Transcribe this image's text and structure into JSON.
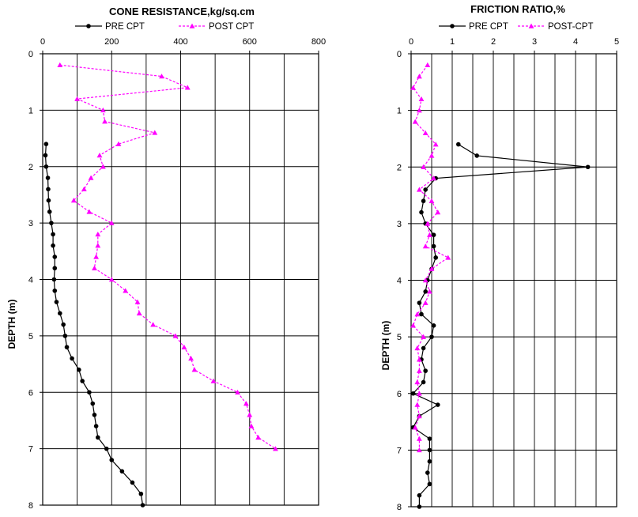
{
  "chart_data": [
    {
      "type": "line",
      "title": "CONE RESISTANCE,kg/sq.cm",
      "xlabel": "",
      "ylabel": "DEPTH (m)",
      "xlim": [
        0,
        800
      ],
      "ylim": [
        0,
        8
      ],
      "x_ticks": [
        0,
        200,
        400,
        600,
        800
      ],
      "y_ticks": [
        0,
        1,
        2,
        3,
        4,
        5,
        6,
        7,
        8
      ],
      "x_axis_position": "top",
      "y_axis_inverted": true,
      "grid": true,
      "legend_position": "top",
      "series": [
        {
          "name": "PRE CPT",
          "color": "#000000",
          "marker": "circle",
          "line": "solid",
          "points": [
            [
              10,
              1.6
            ],
            [
              8,
              1.8
            ],
            [
              10,
              2.0
            ],
            [
              15,
              2.2
            ],
            [
              16,
              2.4
            ],
            [
              17,
              2.6
            ],
            [
              20,
              2.8
            ],
            [
              25,
              3.0
            ],
            [
              30,
              3.2
            ],
            [
              30,
              3.4
            ],
            [
              35,
              3.6
            ],
            [
              35,
              3.8
            ],
            [
              33,
              4.0
            ],
            [
              35,
              4.2
            ],
            [
              40,
              4.4
            ],
            [
              50,
              4.6
            ],
            [
              60,
              4.8
            ],
            [
              65,
              5.0
            ],
            [
              70,
              5.2
            ],
            [
              85,
              5.4
            ],
            [
              105,
              5.6
            ],
            [
              115,
              5.8
            ],
            [
              135,
              6.0
            ],
            [
              145,
              6.2
            ],
            [
              150,
              6.4
            ],
            [
              155,
              6.6
            ],
            [
              160,
              6.8
            ],
            [
              185,
              7.0
            ],
            [
              200,
              7.2
            ],
            [
              230,
              7.4
            ],
            [
              260,
              7.6
            ],
            [
              285,
              7.8
            ],
            [
              290,
              8.0
            ]
          ]
        },
        {
          "name": "POST CPT",
          "color": "#ff00ff",
          "marker": "triangle",
          "line": "dashed",
          "points": [
            [
              50,
              0.2
            ],
            [
              345,
              0.4
            ],
            [
              420,
              0.6
            ],
            [
              100,
              0.8
            ],
            [
              175,
              1.0
            ],
            [
              180,
              1.2
            ],
            [
              325,
              1.4
            ],
            [
              220,
              1.6
            ],
            [
              165,
              1.8
            ],
            [
              175,
              2.0
            ],
            [
              140,
              2.2
            ],
            [
              120,
              2.4
            ],
            [
              90,
              2.6
            ],
            [
              135,
              2.8
            ],
            [
              200,
              3.0
            ],
            [
              160,
              3.2
            ],
            [
              160,
              3.4
            ],
            [
              155,
              3.6
            ],
            [
              150,
              3.8
            ],
            [
              200,
              4.0
            ],
            [
              240,
              4.2
            ],
            [
              275,
              4.4
            ],
            [
              280,
              4.6
            ],
            [
              320,
              4.8
            ],
            [
              385,
              5.0
            ],
            [
              410,
              5.2
            ],
            [
              430,
              5.4
            ],
            [
              440,
              5.6
            ],
            [
              495,
              5.8
            ],
            [
              565,
              6.0
            ],
            [
              590,
              6.2
            ],
            [
              600,
              6.4
            ],
            [
              605,
              6.6
            ],
            [
              625,
              6.8
            ],
            [
              675,
              7.0
            ]
          ]
        }
      ]
    },
    {
      "type": "line",
      "title": "FRICTION RATIO,%",
      "xlabel": "",
      "ylabel": "DEPTH (m)",
      "xlim": [
        0,
        5
      ],
      "ylim": [
        0,
        8
      ],
      "x_ticks": [
        0,
        1,
        2,
        3,
        4,
        5
      ],
      "y_ticks": [
        0,
        1,
        2,
        3,
        4,
        5,
        6,
        7,
        8
      ],
      "x_axis_position": "top",
      "y_axis_inverted": true,
      "grid": true,
      "legend_position": "top",
      "series": [
        {
          "name": "PRE CPT",
          "color": "#000000",
          "marker": "circle",
          "line": "solid",
          "points": [
            [
              1.15,
              1.6
            ],
            [
              1.6,
              1.8
            ],
            [
              4.3,
              2.0
            ],
            [
              0.6,
              2.2
            ],
            [
              0.35,
              2.4
            ],
            [
              0.3,
              2.6
            ],
            [
              0.25,
              2.8
            ],
            [
              0.35,
              3.0
            ],
            [
              0.55,
              3.2
            ],
            [
              0.55,
              3.4
            ],
            [
              0.6,
              3.6
            ],
            [
              0.5,
              3.8
            ],
            [
              0.4,
              4.0
            ],
            [
              0.35,
              4.2
            ],
            [
              0.2,
              4.4
            ],
            [
              0.25,
              4.6
            ],
            [
              0.55,
              4.8
            ],
            [
              0.5,
              5.0
            ],
            [
              0.3,
              5.2
            ],
            [
              0.25,
              5.4
            ],
            [
              0.35,
              5.6
            ],
            [
              0.3,
              5.8
            ],
            [
              0.05,
              6.0
            ],
            [
              0.65,
              6.2
            ],
            [
              0.2,
              6.4
            ],
            [
              0.05,
              6.6
            ],
            [
              0.45,
              6.8
            ],
            [
              0.45,
              7.0
            ],
            [
              0.45,
              7.2
            ],
            [
              0.4,
              7.4
            ],
            [
              0.45,
              7.6
            ],
            [
              0.2,
              7.8
            ],
            [
              0.2,
              8.0
            ]
          ]
        },
        {
          "name": "POST-CPT",
          "color": "#ff00ff",
          "marker": "triangle",
          "line": "dashed",
          "points": [
            [
              0.4,
              0.2
            ],
            [
              0.2,
              0.4
            ],
            [
              0.05,
              0.6
            ],
            [
              0.25,
              0.8
            ],
            [
              0.2,
              1.0
            ],
            [
              0.1,
              1.2
            ],
            [
              0.35,
              1.4
            ],
            [
              0.6,
              1.6
            ],
            [
              0.5,
              1.8
            ],
            [
              0.3,
              2.0
            ],
            [
              0.55,
              2.2
            ],
            [
              0.2,
              2.4
            ],
            [
              0.5,
              2.6
            ],
            [
              0.65,
              2.8
            ],
            [
              0.4,
              3.0
            ],
            [
              0.45,
              3.2
            ],
            [
              0.35,
              3.4
            ],
            [
              0.9,
              3.6
            ],
            [
              0.5,
              3.8
            ],
            [
              0.35,
              4.0
            ],
            [
              0.45,
              4.2
            ],
            [
              0.35,
              4.4
            ],
            [
              0.15,
              4.6
            ],
            [
              0.05,
              4.8
            ],
            [
              0.3,
              5.0
            ],
            [
              0.15,
              5.2
            ],
            [
              0.2,
              5.4
            ],
            [
              0.2,
              5.6
            ],
            [
              0.15,
              5.8
            ],
            [
              0.2,
              6.0
            ],
            [
              0.15,
              6.2
            ],
            [
              0.2,
              6.4
            ],
            [
              0.1,
              6.6
            ],
            [
              0.2,
              6.8
            ],
            [
              0.2,
              7.0
            ]
          ]
        }
      ]
    }
  ]
}
